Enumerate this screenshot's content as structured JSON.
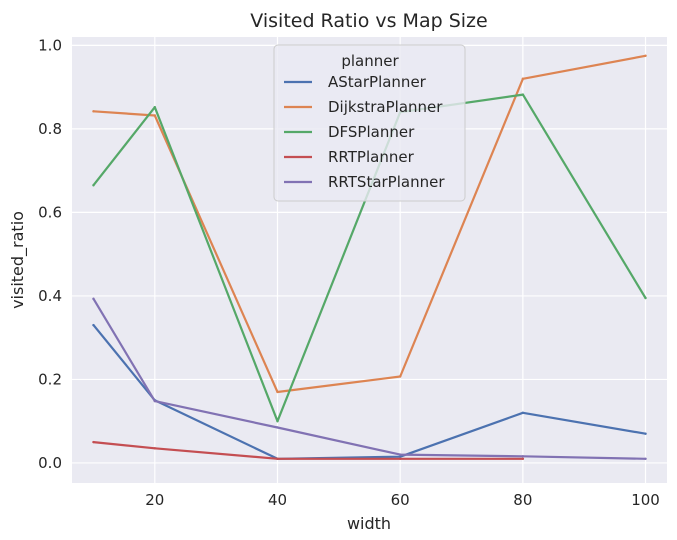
{
  "chart_data": {
    "type": "line",
    "title": "Visited Ratio vs Map Size",
    "xlabel": "width",
    "ylabel": "visited_ratio",
    "xlim": [
      6.5,
      103.5
    ],
    "ylim": [
      -0.048,
      1.02
    ],
    "xticks": [
      20,
      40,
      60,
      80,
      100
    ],
    "yticks": [
      0.0,
      0.2,
      0.4,
      0.6,
      0.8,
      1.0
    ],
    "xtick_labels": [
      "20",
      "40",
      "60",
      "80",
      "100"
    ],
    "ytick_labels": [
      "0.0",
      "0.2",
      "0.4",
      "0.6",
      "0.8",
      "1.0"
    ],
    "grid": true,
    "background": "#eaeaf2",
    "legend": {
      "title": "planner",
      "placement": "top-center"
    },
    "series": [
      {
        "name": "AStarPlanner",
        "color": "#4c72b0",
        "x": [
          10,
          20,
          40,
          60,
          80,
          100
        ],
        "y": [
          0.33,
          0.15,
          0.01,
          0.015,
          0.12,
          0.07
        ]
      },
      {
        "name": "DijkstraPlanner",
        "color": "#dd8452",
        "x": [
          10,
          20,
          40,
          60,
          80,
          100
        ],
        "y": [
          0.842,
          0.832,
          0.17,
          0.207,
          0.92,
          0.975
        ]
      },
      {
        "name": "DFSPlanner",
        "color": "#55a868",
        "x": [
          10,
          20,
          40,
          60,
          80,
          100
        ],
        "y": [
          0.665,
          0.852,
          0.1,
          0.84,
          0.882,
          0.395
        ]
      },
      {
        "name": "RRTPlanner",
        "color": "#c44e52",
        "x": [
          10,
          20,
          40,
          60,
          80
        ],
        "y": [
          0.05,
          0.035,
          0.01,
          0.01,
          0.01
        ]
      },
      {
        "name": "RRTStarPlanner",
        "color": "#8172b3",
        "x": [
          10,
          20,
          40,
          60,
          80,
          100
        ],
        "y": [
          0.393,
          0.148,
          0.085,
          0.02,
          0.016,
          0.01
        ]
      }
    ]
  }
}
